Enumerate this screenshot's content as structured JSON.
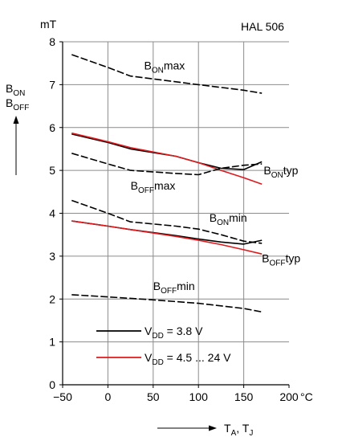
{
  "header": {
    "unit_label": "mT",
    "device": "HAL 506"
  },
  "y_axis_label": {
    "line1_main": "B",
    "line1_sub": "ON",
    "line2_main": "B",
    "line2_sub": "OFF"
  },
  "x_axis_label": {
    "t1_main": "T",
    "t1_sub": "A",
    "sep": ", ",
    "t2_main": "T",
    "t2_sub": "J"
  },
  "x_unit": "°C",
  "annotations": [
    {
      "id": "bon-max",
      "main": "B",
      "sub": "ON",
      "suffix": "max",
      "x": 40,
      "y": 7.45
    },
    {
      "id": "bon-typ",
      "main": "B",
      "sub": "ON",
      "suffix": "typ",
      "x": 172,
      "y": 5.0
    },
    {
      "id": "boff-max",
      "main": "B",
      "sub": "OFF",
      "suffix": "max",
      "x": 25,
      "y": 4.65
    },
    {
      "id": "bon-min",
      "main": "B",
      "sub": "ON",
      "suffix": "min",
      "x": 112,
      "y": 3.9
    },
    {
      "id": "boff-typ",
      "main": "B",
      "sub": "OFF",
      "suffix": "typ",
      "x": 170,
      "y": 2.95
    },
    {
      "id": "boff-min",
      "main": "B",
      "sub": "OFF",
      "suffix": "min",
      "x": 50,
      "y": 2.3
    }
  ],
  "legend": [
    {
      "main": "V",
      "sub": "DD",
      "text": " = 3.8 V",
      "color": "#000000"
    },
    {
      "main": "V",
      "sub": "DD",
      "text": " = 4.5 ... 24 V",
      "color": "#e0191c"
    }
  ],
  "chart_data": {
    "type": "line",
    "xlabel": "TA, TJ",
    "ylabel": "BON BOFF",
    "xunit": "°C",
    "yunit": "mT",
    "xlim": [
      -50,
      200
    ],
    "ylim": [
      0,
      8
    ],
    "xticks": [
      -50,
      0,
      50,
      100,
      150,
      200
    ],
    "yticks": [
      0,
      1,
      2,
      3,
      4,
      5,
      6,
      7,
      8
    ],
    "grid": true,
    "series": [
      {
        "name": "BONmax",
        "style": "dashed",
        "color": "#000000",
        "x": [
          -40,
          0,
          25,
          100,
          150,
          170
        ],
        "y": [
          7.7,
          7.4,
          7.2,
          7.0,
          6.87,
          6.8
        ]
      },
      {
        "name": "BONtyp",
        "color": "#000000",
        "x": [
          -40,
          0,
          25,
          75,
          100,
          125,
          150,
          170
        ],
        "y": [
          5.85,
          5.65,
          5.5,
          5.33,
          5.18,
          5.05,
          5.02,
          5.2
        ]
      },
      {
        "name": "BONtyp",
        "color": "#e0191c",
        "x": [
          -40,
          0,
          25,
          75,
          100,
          125,
          150,
          170
        ],
        "y": [
          5.87,
          5.67,
          5.53,
          5.33,
          5.18,
          5.0,
          4.83,
          4.68
        ]
      },
      {
        "name": "BOFFmax",
        "style": "dashed",
        "color": "#000000",
        "x": [
          -40,
          0,
          25,
          75,
          100,
          125,
          150,
          170
        ],
        "y": [
          5.4,
          5.15,
          5.0,
          4.93,
          4.9,
          5.05,
          5.12,
          5.15
        ]
      },
      {
        "name": "BONmin",
        "style": "dashed",
        "color": "#000000",
        "x": [
          -40,
          0,
          25,
          75,
          100,
          125,
          150,
          170
        ],
        "y": [
          4.3,
          4.0,
          3.8,
          3.7,
          3.63,
          3.5,
          3.35,
          3.3
        ]
      },
      {
        "name": "BOFFtyp",
        "color": "#000000",
        "x": [
          -40,
          0,
          25,
          75,
          100,
          125,
          150,
          170
        ],
        "y": [
          3.82,
          3.7,
          3.62,
          3.48,
          3.4,
          3.33,
          3.28,
          3.37
        ]
      },
      {
        "name": "BOFFtyp",
        "color": "#e0191c",
        "x": [
          -40,
          0,
          25,
          75,
          100,
          125,
          150,
          170
        ],
        "y": [
          3.82,
          3.7,
          3.62,
          3.46,
          3.37,
          3.27,
          3.15,
          3.05
        ]
      },
      {
        "name": "BOFFmin",
        "style": "dashed",
        "color": "#000000",
        "x": [
          -40,
          0,
          50,
          100,
          150,
          170
        ],
        "y": [
          2.1,
          2.05,
          1.98,
          1.9,
          1.78,
          1.7
        ]
      }
    ]
  }
}
